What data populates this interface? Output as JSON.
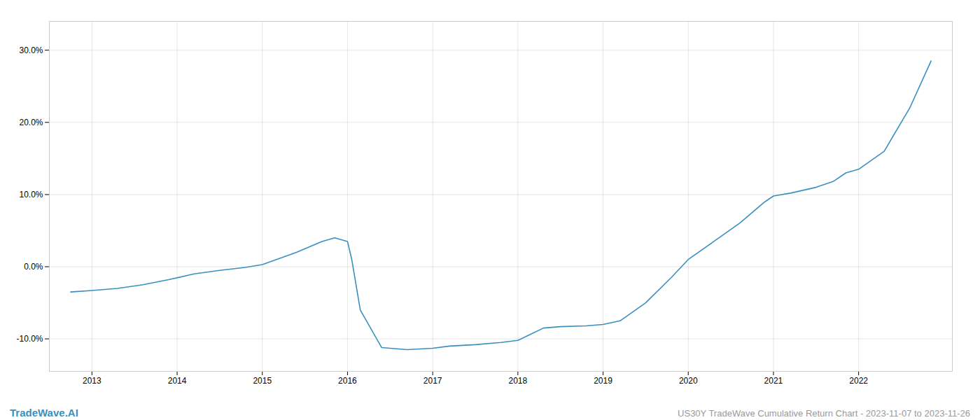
{
  "chart_data": {
    "type": "line",
    "x": [
      2012.75,
      2013.0,
      2013.3,
      2013.6,
      2013.9,
      2014.2,
      2014.5,
      2014.8,
      2015.0,
      2015.4,
      2015.7,
      2015.85,
      2016.0,
      2016.05,
      2016.15,
      2016.4,
      2016.7,
      2017.0,
      2017.2,
      2017.5,
      2017.8,
      2018.0,
      2018.3,
      2018.5,
      2018.8,
      2019.0,
      2019.2,
      2019.5,
      2019.8,
      2020.0,
      2020.3,
      2020.6,
      2020.9,
      2021.0,
      2021.2,
      2021.5,
      2021.7,
      2021.85,
      2022.0,
      2022.3,
      2022.6,
      2022.85
    ],
    "values": [
      -3.5,
      -3.3,
      -3.0,
      -2.5,
      -1.8,
      -1.0,
      -0.5,
      -0.1,
      0.3,
      2.0,
      3.5,
      4.0,
      3.5,
      1.0,
      -6.0,
      -11.2,
      -11.5,
      -11.3,
      -11.0,
      -10.8,
      -10.5,
      -10.2,
      -8.5,
      -8.3,
      -8.2,
      -8.0,
      -7.5,
      -5.0,
      -1.5,
      1.0,
      3.5,
      6.0,
      9.0,
      9.8,
      10.2,
      11.0,
      11.8,
      13.0,
      13.5,
      16.0,
      22.0,
      28.5
    ],
    "color": "#3a8fbf",
    "xlim": [
      2012.5,
      2023.1
    ],
    "ylim": [
      -14.5,
      34.0
    ],
    "xticks": [
      2013,
      2014,
      2015,
      2016,
      2017,
      2018,
      2019,
      2020,
      2021,
      2022
    ],
    "yticks": [
      {
        "value": -10.0,
        "label": "-10.0%"
      },
      {
        "value": 0.0,
        "label": "0.0%"
      },
      {
        "value": 10.0,
        "label": "10.0%"
      },
      {
        "value": 20.0,
        "label": "20.0%"
      },
      {
        "value": 30.0,
        "label": "30.0%"
      }
    ],
    "grid": true,
    "annotations": [
      {
        "text": "TradeWave.AI",
        "color": "#3a8fbf"
      },
      {
        "text": "US30Y TradeWave Cumulative Return Chart - 2023-11-07 to 2023-11-26",
        "color": "#999999"
      }
    ]
  }
}
